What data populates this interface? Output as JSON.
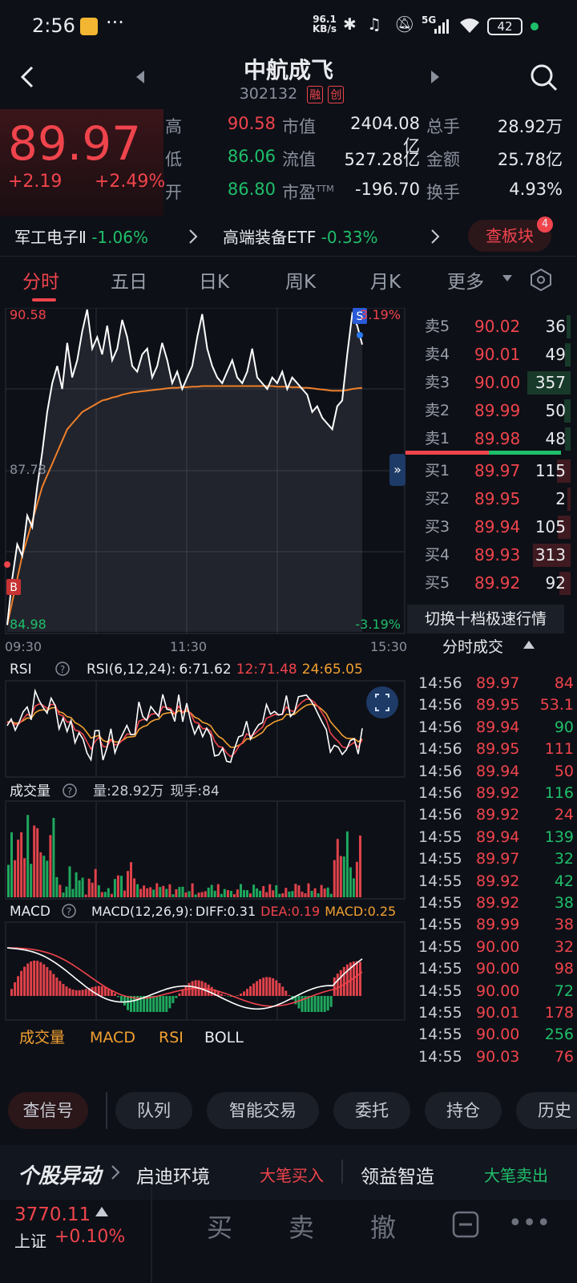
{
  "status_bar": {
    "time": "2:56",
    "speed_value": "96.1",
    "speed_unit": "KB/s",
    "network": "5G",
    "battery": "42"
  },
  "header": {
    "name": "中航成飞",
    "code": "302132",
    "badge_margin": "融",
    "badge_gem": "创"
  },
  "quote": {
    "price": "89.97",
    "change": "+2.19",
    "change_pct": "+2.49%",
    "stats": [
      {
        "l1": "高",
        "v1": "90.58",
        "c1": "red",
        "l2": "市值",
        "v2": "2404.08亿",
        "l3": "总手",
        "v3": "28.92万"
      },
      {
        "l1": "低",
        "v1": "86.06",
        "c1": "green",
        "l2": "流值",
        "v2": "527.28亿",
        "l3": "金额",
        "v3": "25.78亿"
      },
      {
        "l1": "开",
        "v1": "86.80",
        "c1": "green",
        "l2": "市盈",
        "l2sup": "TTM",
        "v2": "-196.70",
        "l3": "换手",
        "v3": "4.93%"
      }
    ]
  },
  "sectors": {
    "s1_name": "军工电子Ⅱ",
    "s1_pct": "-1.06%",
    "s2_name": "高端装备ETF",
    "s2_pct": "-0.33%",
    "button": "查板块",
    "badge": "4"
  },
  "tabs": [
    "分时",
    "五日",
    "日K",
    "周K",
    "月K",
    "更多"
  ],
  "chart": {
    "price_high": "90.58",
    "price_mid": "87.78",
    "price_low": "84.98",
    "pct_high": "3.19%",
    "pct_low": "-3.19%",
    "time_start": "09:30",
    "time_mid": "11:30",
    "time_end": "15:30",
    "marker_s": "S",
    "marker_b": "B",
    "rsi_title": "RSI",
    "rsi_params": "RSI(6,12,24):",
    "rsi6": "6:71.62",
    "rsi12": "12:71.48",
    "rsi24": "24:65.05",
    "vol_title": "成交量",
    "vol_total": "量:28.92万",
    "vol_now": "现手:84",
    "macd_title": "MACD",
    "macd_params": "MACD(12,26,9):",
    "diff": "DIFF:0.31",
    "dea": "DEA:0.19",
    "macd": "MACD:0.25",
    "ind_tabs": [
      "成交量",
      "MACD",
      "RSI",
      "BOLL"
    ]
  },
  "orderbook": {
    "asks": [
      {
        "label": "卖5",
        "price": "90.02",
        "vol": "36"
      },
      {
        "label": "卖4",
        "price": "90.01",
        "vol": "49"
      },
      {
        "label": "卖3",
        "price": "90.00",
        "vol": "357"
      },
      {
        "label": "卖2",
        "price": "89.99",
        "vol": "50"
      },
      {
        "label": "卖1",
        "price": "89.98",
        "vol": "48"
      }
    ],
    "bids": [
      {
        "label": "买1",
        "price": "89.97",
        "vol": "115"
      },
      {
        "label": "买2",
        "price": "89.95",
        "vol": "2"
      },
      {
        "label": "买3",
        "price": "89.94",
        "vol": "105"
      },
      {
        "label": "买4",
        "price": "89.93",
        "vol": "313"
      },
      {
        "label": "买5",
        "price": "89.92",
        "vol": "92"
      }
    ],
    "switch_label": "切换十档极速行情",
    "ticks_title": "分时成交"
  },
  "ticks": [
    {
      "t": "14:56",
      "p": "89.97",
      "v": "84",
      "c": "red"
    },
    {
      "t": "14:56",
      "p": "89.95",
      "v": "53.1",
      "c": "red"
    },
    {
      "t": "14:56",
      "p": "89.94",
      "v": "90",
      "c": "green"
    },
    {
      "t": "14:56",
      "p": "89.95",
      "v": "111",
      "c": "red"
    },
    {
      "t": "14:56",
      "p": "89.94",
      "v": "50",
      "c": "red"
    },
    {
      "t": "14:56",
      "p": "89.92",
      "v": "116",
      "c": "green"
    },
    {
      "t": "14:56",
      "p": "89.92",
      "v": "24",
      "c": "red"
    },
    {
      "t": "14:55",
      "p": "89.94",
      "v": "139",
      "c": "green"
    },
    {
      "t": "14:55",
      "p": "89.97",
      "v": "32",
      "c": "green"
    },
    {
      "t": "14:55",
      "p": "89.92",
      "v": "42",
      "c": "green"
    },
    {
      "t": "14:55",
      "p": "89.92",
      "v": "38",
      "c": "green"
    },
    {
      "t": "14:55",
      "p": "89.99",
      "v": "38",
      "c": "red"
    },
    {
      "t": "14:55",
      "p": "90.00",
      "v": "32",
      "c": "red"
    },
    {
      "t": "14:55",
      "p": "90.00",
      "v": "98",
      "c": "red"
    },
    {
      "t": "14:55",
      "p": "90.00",
      "v": "72",
      "c": "green"
    },
    {
      "t": "14:55",
      "p": "90.01",
      "v": "178",
      "c": "red"
    },
    {
      "t": "14:55",
      "p": "90.00",
      "v": "256",
      "c": "green"
    },
    {
      "t": "14:55",
      "p": "90.03",
      "v": "76",
      "c": "red"
    }
  ],
  "actions": [
    "查信号",
    "队列",
    "智能交易",
    "委托",
    "持仓",
    "历史"
  ],
  "news": {
    "logo": "个股异动",
    "item1": "启迪环境",
    "tag1": "大笔买入",
    "item2": "领益智造",
    "tag2": "大笔卖出"
  },
  "bottom": {
    "index_value": "3770.11",
    "index_name": "上证",
    "index_pct": "+0.10%",
    "buy": "买",
    "sell": "卖",
    "cancel": "撤"
  },
  "colors": {
    "up": "#f0444c",
    "down": "#1fbe6a",
    "avg_line": "#f07f2a",
    "bg": "#0d1017"
  },
  "chart_data": {
    "type": "line",
    "title": "",
    "x_range": [
      "09:30",
      "15:30"
    ],
    "y_range": [
      84.98,
      90.58
    ],
    "series": [
      {
        "values": [
          85.1,
          85.9,
          86.5,
          86.3,
          87.0,
          86.8,
          87.5,
          88.1,
          88.8,
          89.3,
          89.6,
          89.2,
          90.0,
          89.4,
          89.7,
          90.2,
          90.58,
          89.9,
          90.1,
          89.8,
          90.3,
          89.7,
          89.9,
          90.4,
          90.1,
          89.6,
          89.5,
          89.8,
          89.9,
          89.4,
          89.6,
          90.0,
          89.7,
          89.3,
          89.5,
          89.2,
          89.4,
          89.6,
          90.1,
          90.5,
          89.9,
          89.6,
          89.4,
          89.3,
          89.5,
          89.7,
          89.4,
          89.3,
          89.5,
          89.9,
          89.4,
          89.3,
          89.2,
          89.4,
          89.3,
          89.5,
          89.2,
          89.4,
          89.3,
          89.2,
          89.1,
          88.8,
          88.9,
          88.7,
          88.6,
          88.5,
          88.9,
          89.0,
          89.8,
          90.5,
          90.3,
          89.97
        ]
      },
      {
        "values": [
          85.1,
          85.5,
          85.9,
          86.3,
          86.6,
          86.9,
          87.2,
          87.5,
          87.7,
          87.9,
          88.1,
          88.3,
          88.5,
          88.6,
          88.7,
          88.8,
          88.85,
          88.9,
          88.95,
          89.0,
          89.02,
          89.05,
          89.07,
          89.1,
          89.12,
          89.14,
          89.15,
          89.16,
          89.17,
          89.18,
          89.19,
          89.2,
          89.21,
          89.22,
          89.22,
          89.23,
          89.23,
          89.24,
          89.24,
          89.25,
          89.25,
          89.25,
          89.25,
          89.25,
          89.25,
          89.25,
          89.25,
          89.25,
          89.25,
          89.25,
          89.25,
          89.25,
          89.25,
          89.25,
          89.24,
          89.24,
          89.24,
          89.23,
          89.23,
          89.22,
          89.22,
          89.21,
          89.2,
          89.19,
          89.18,
          89.17,
          89.17,
          89.17,
          89.18,
          89.2,
          89.21,
          89.22
        ]
      }
    ]
  }
}
